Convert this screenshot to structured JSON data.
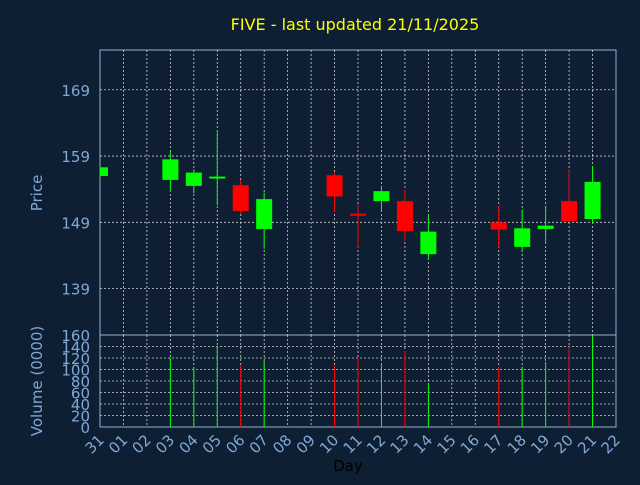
{
  "colors": {
    "background": "#0f1f33",
    "plot_background": "#0f1f33",
    "frame": "#8fb2d6",
    "grid": "#d0d0d0",
    "tick_text": "#7fa8d4",
    "title": "#ffff00",
    "up": "#00ff00",
    "down": "#ff0000"
  },
  "chart_data": [
    {
      "type": "candlestick",
      "title": "FIVE - last updated 21/11/2025",
      "ylabel": "Price",
      "ylim": [
        132,
        175
      ],
      "yticks": [
        139,
        149,
        159,
        169
      ],
      "grid": true,
      "categories": [
        "31",
        "01",
        "02",
        "03",
        "04",
        "05",
        "06",
        "07",
        "08",
        "09",
        "10",
        "11",
        "12",
        "13",
        "14",
        "15",
        "16",
        "17",
        "18",
        "19",
        "20",
        "21",
        "22"
      ],
      "candles": [
        {
          "x": "31",
          "open": 156.0,
          "close": 157.3,
          "high": 157.5,
          "low": 155.8
        },
        {
          "x": "03",
          "open": 155.4,
          "close": 158.5,
          "high": 159.6,
          "low": 153.6
        },
        {
          "x": "04",
          "open": 154.5,
          "close": 156.5,
          "high": 157.0,
          "low": 153.4
        },
        {
          "x": "05",
          "open": 155.6,
          "close": 155.9,
          "high": 162.6,
          "low": 151.6
        },
        {
          "x": "06",
          "open": 154.6,
          "close": 150.7,
          "high": 155.4,
          "low": 150.3
        },
        {
          "x": "07",
          "open": 148.0,
          "close": 152.5,
          "high": 153.5,
          "low": 145.0
        },
        {
          "x": "10",
          "open": 156.1,
          "close": 152.9,
          "high": 156.5,
          "low": 150.6
        },
        {
          "x": "11",
          "open": 150.3,
          "close": 150.0,
          "high": 151.7,
          "low": 145.2
        },
        {
          "x": "12",
          "open": 152.2,
          "close": 153.7,
          "high": 154.5,
          "low": 150.7
        },
        {
          "x": "13",
          "open": 152.2,
          "close": 147.7,
          "high": 153.9,
          "low": 146.2
        },
        {
          "x": "14",
          "open": 144.2,
          "close": 147.6,
          "high": 150.0,
          "low": 143.3
        },
        {
          "x": "17",
          "open": 149.0,
          "close": 147.9,
          "high": 151.5,
          "low": 145.2
        },
        {
          "x": "18",
          "open": 145.3,
          "close": 148.1,
          "high": 150.9,
          "low": 144.5
        },
        {
          "x": "19",
          "open": 148.0,
          "close": 148.5,
          "high": 151.5,
          "low": 145.8
        },
        {
          "x": "20",
          "open": 152.2,
          "close": 149.2,
          "high": 157.0,
          "low": 149.0
        },
        {
          "x": "21",
          "open": 149.5,
          "close": 155.1,
          "high": 157.5,
          "low": 148.8
        }
      ]
    },
    {
      "type": "bar",
      "ylabel": "Volume (0000)",
      "xlabel": "Day",
      "ylim": [
        0,
        160
      ],
      "yticks": [
        0,
        20,
        40,
        60,
        80,
        100,
        120,
        140,
        160
      ],
      "categories": [
        "31",
        "01",
        "02",
        "03",
        "04",
        "05",
        "06",
        "07",
        "08",
        "09",
        "10",
        "11",
        "12",
        "13",
        "14",
        "15",
        "16",
        "17",
        "18",
        "19",
        "20",
        "21",
        "22"
      ],
      "values": [
        {
          "x": "03",
          "value": 120,
          "dir": "up"
        },
        {
          "x": "04",
          "value": 100,
          "dir": "up"
        },
        {
          "x": "05",
          "value": 140,
          "dir": "up"
        },
        {
          "x": "06",
          "value": 107,
          "dir": "down"
        },
        {
          "x": "07",
          "value": 115,
          "dir": "up"
        },
        {
          "x": "10",
          "value": 107,
          "dir": "down"
        },
        {
          "x": "11",
          "value": 120,
          "dir": "down"
        },
        {
          "x": "12",
          "value": 110,
          "dir": "up"
        },
        {
          "x": "13",
          "value": 132,
          "dir": "down"
        },
        {
          "x": "14",
          "value": 75,
          "dir": "up"
        },
        {
          "x": "17",
          "value": 105,
          "dir": "down"
        },
        {
          "x": "18",
          "value": 105,
          "dir": "up"
        },
        {
          "x": "19",
          "value": 113,
          "dir": "up"
        },
        {
          "x": "20",
          "value": 140,
          "dir": "down"
        },
        {
          "x": "21",
          "value": 158,
          "dir": "up"
        }
      ]
    }
  ]
}
